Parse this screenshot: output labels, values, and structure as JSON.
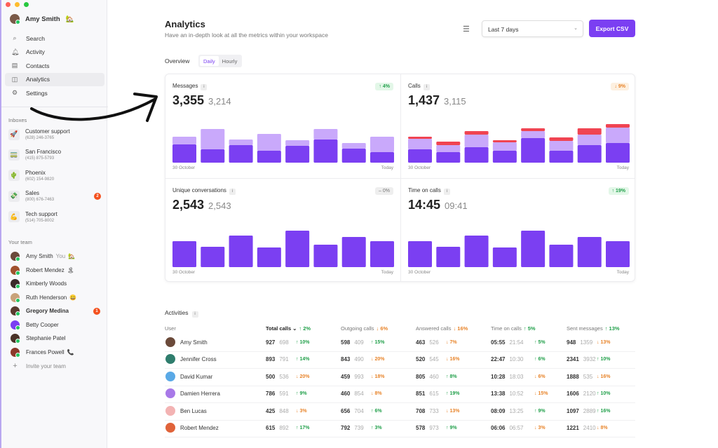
{
  "window": {
    "controls": [
      "#ff5f57",
      "#febc2e",
      "#28c840"
    ]
  },
  "sidebar": {
    "user": {
      "name": "Amy Smith",
      "emoji": "🏡"
    },
    "nav": [
      {
        "label": "Search",
        "icon": "search-icon",
        "glyph": "⌕"
      },
      {
        "label": "Activity",
        "icon": "bell-icon",
        "glyph": "🔔︎"
      },
      {
        "label": "Contacts",
        "icon": "contacts-icon",
        "glyph": "▤"
      },
      {
        "label": "Analytics",
        "icon": "analytics-icon",
        "glyph": "◫",
        "active": true
      },
      {
        "label": "Settings",
        "icon": "gear-icon",
        "glyph": "⚙"
      }
    ],
    "inboxes_title": "Inboxes",
    "inboxes": [
      {
        "name": "Customer support",
        "phone": "(628) 246-3765",
        "emoji": "🚀"
      },
      {
        "name": "San Francisco",
        "phone": "(415) 875-5793",
        "emoji": "🚃"
      },
      {
        "name": "Phoenix",
        "phone": "(602) 154-9820",
        "emoji": "🌵"
      },
      {
        "name": "Sales",
        "phone": "(800) 676-7463",
        "emoji": "💸",
        "badge": "2"
      },
      {
        "name": "Tech support",
        "phone": "(514) 705-8002",
        "emoji": "💪"
      }
    ],
    "team_title": "Your team",
    "team": [
      {
        "name": "Amy Smith",
        "you": "You",
        "emoji": "🏡"
      },
      {
        "name": "Robert Mendez",
        "emoji": "🏝"
      },
      {
        "name": "Kimberly Woods",
        "emoji": ""
      },
      {
        "name": "Ruth Henderson",
        "emoji": "😀"
      },
      {
        "name": "Gregory Medina",
        "emoji": "",
        "badge": "1"
      },
      {
        "name": "Betty Cooper",
        "emoji": ""
      },
      {
        "name": "Stephanie Patel",
        "emoji": ""
      },
      {
        "name": "Frances Powell",
        "emoji": "📞"
      }
    ],
    "invite": "Invite your team"
  },
  "header": {
    "title": "Analytics",
    "subtitle": "Have an in-depth look at all the metrics within your workspace",
    "range": "Last 7 days",
    "export": "Export CSV"
  },
  "overview": {
    "label": "Overview",
    "tabs": [
      "Daily",
      "Hourly"
    ],
    "active_tab": "Daily"
  },
  "colors": {
    "primary": "#7b3ff2",
    "secondary": "#c9a9fb",
    "missed": "#f04452",
    "up": "#22a04b",
    "down": "#e8842a"
  },
  "chart_data": [
    {
      "type": "bar",
      "stacked": true,
      "title": "Messages",
      "value": "3,355",
      "previous": "3,214",
      "change": "4%",
      "trend": "up",
      "x_start": "30 October",
      "x_end": "Today",
      "series": [
        {
          "values": [
            26,
            19,
            25,
            17,
            24,
            33,
            20,
            15
          ]
        },
        {
          "values": [
            11,
            29,
            8,
            24,
            8,
            15,
            8,
            22
          ]
        }
      ]
    },
    {
      "type": "bar",
      "stacked": true,
      "title": "Calls",
      "value": "1,437",
      "previous": "3,115",
      "change": "9%",
      "trend": "down",
      "x_start": "30 October",
      "x_end": "Today",
      "series": [
        {
          "values": [
            19,
            15,
            22,
            17,
            35,
            17,
            25,
            28
          ]
        },
        {
          "values": [
            15,
            10,
            18,
            12,
            10,
            14,
            15,
            22
          ]
        },
        {
          "values": [
            3,
            5,
            5,
            3,
            4,
            5,
            9,
            5
          ]
        }
      ]
    },
    {
      "type": "bar",
      "title": "Unique conversations",
      "value": "2,543",
      "previous": "2,543",
      "change": "0%",
      "trend": "flat",
      "x_start": "30 October",
      "x_end": "Today",
      "series": [
        {
          "values": [
            37,
            29,
            45,
            28,
            52,
            32,
            43,
            37
          ]
        }
      ]
    },
    {
      "type": "bar",
      "title": "Time on calls",
      "value": "14:45",
      "previous": "09:41",
      "change": "19%",
      "trend": "up",
      "x_start": "30 October",
      "x_end": "Today",
      "series": [
        {
          "values": [
            37,
            29,
            45,
            28,
            52,
            32,
            43,
            37
          ]
        }
      ]
    }
  ],
  "activities": {
    "title": "Activities",
    "columns": [
      {
        "label": "User"
      },
      {
        "label": "Total calls",
        "sorted": true,
        "change": "2%",
        "trend": "up"
      },
      {
        "label": "Outgoing calls",
        "change": "6%",
        "trend": "down"
      },
      {
        "label": "Answered calls",
        "change": "16%",
        "trend": "down"
      },
      {
        "label": "Time on calls",
        "change": "5%",
        "trend": "up"
      },
      {
        "label": "Sent messages",
        "change": "13%",
        "trend": "up"
      }
    ],
    "rows": [
      {
        "user": "Amy Smith",
        "avatar": "#6b4a3a",
        "cells": [
          [
            "927",
            "698",
            "10%",
            "up"
          ],
          [
            "598",
            "409",
            "15%",
            "up"
          ],
          [
            "463",
            "526",
            "7%",
            "down"
          ],
          [
            "05:55",
            "21:54",
            "5%",
            "up"
          ],
          [
            "948",
            "1359",
            "13%",
            "down"
          ]
        ]
      },
      {
        "user": "Jennifer Cross",
        "avatar": "#2f7d6d",
        "cells": [
          [
            "893",
            "791",
            "14%",
            "up"
          ],
          [
            "843",
            "490",
            "20%",
            "down"
          ],
          [
            "520",
            "545",
            "16%",
            "down"
          ],
          [
            "22:47",
            "10:30",
            "6%",
            "up"
          ],
          [
            "2341",
            "3932",
            "10%",
            "up"
          ]
        ]
      },
      {
        "user": "David Kumar",
        "avatar": "#5aa9e6",
        "cells": [
          [
            "500",
            "536",
            "20%",
            "down"
          ],
          [
            "459",
            "993",
            "18%",
            "down"
          ],
          [
            "805",
            "460",
            "8%",
            "up"
          ],
          [
            "10:28",
            "18:03",
            "6%",
            "down"
          ],
          [
            "1888",
            "535",
            "16%",
            "down"
          ]
        ]
      },
      {
        "user": "Damien Herrera",
        "avatar": "#a879e8",
        "cells": [
          [
            "786",
            "591",
            "9%",
            "up"
          ],
          [
            "460",
            "854",
            "8%",
            "down"
          ],
          [
            "851",
            "615",
            "19%",
            "up"
          ],
          [
            "13:38",
            "10:52",
            "15%",
            "down"
          ],
          [
            "1606",
            "2120",
            "10%",
            "up"
          ]
        ]
      },
      {
        "user": "Ben Lucas",
        "avatar": "#f3b3b3",
        "cells": [
          [
            "425",
            "848",
            "3%",
            "down"
          ],
          [
            "656",
            "704",
            "6%",
            "up"
          ],
          [
            "708",
            "733",
            "13%",
            "down"
          ],
          [
            "08:09",
            "13:25",
            "9%",
            "up"
          ],
          [
            "1097",
            "2889",
            "16%",
            "up"
          ]
        ]
      },
      {
        "user": "Robert Mendez",
        "avatar": "#e0633a",
        "cells": [
          [
            "615",
            "892",
            "17%",
            "up"
          ],
          [
            "792",
            "739",
            "3%",
            "up"
          ],
          [
            "578",
            "973",
            "9%",
            "up"
          ],
          [
            "06:06",
            "06:57",
            "3%",
            "down"
          ],
          [
            "1221",
            "2410",
            "8%",
            "down"
          ]
        ]
      }
    ]
  }
}
